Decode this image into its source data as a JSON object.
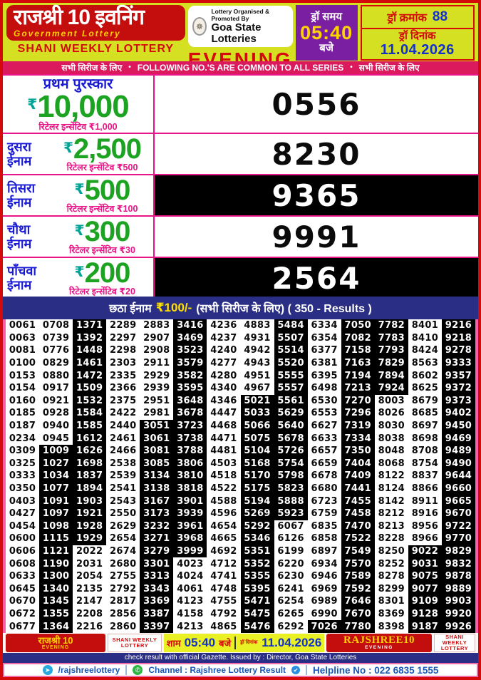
{
  "colors": {
    "background_green": "#d6e023",
    "brand_red": "#c40d0d",
    "strip_pink": "#db1a5e",
    "purple": "#7b1fa2",
    "navy": "#2b2e85",
    "amount_green": "#1ca322",
    "label_blue": "#1a1ad4",
    "value_blue": "#1231c8",
    "incentive_pink": "#e91487",
    "time_yellow": "#ffd400",
    "footer_yellow": "#e9f024",
    "contact_blue": "#1857b5"
  },
  "header": {
    "title_hi": "राजश्री 10 इवनिंग",
    "gov_lottery": "Government Lottery",
    "weekly": "SHANI WEEKLY LOTTERY",
    "org_line1": "Lottery Organised & Promoted By",
    "org_line2": "Goa State Lotteries",
    "session": "EVENING",
    "draw_time_label": "ड्रॉ समय",
    "draw_time": "05:40",
    "draw_time_unit": "बजे",
    "draw_no_label": "ड्रॉ क्रमांक",
    "draw_no": "88",
    "draw_date_label": "ड्रॉ दिनांक",
    "draw_date": "11.04.2026"
  },
  "series_strip": {
    "hindi": "सभी सिरीज के लिए",
    "bullet": "•",
    "english": "FOLLOWING NO.'S ARE COMMON TO ALL SERIES"
  },
  "prizes": [
    {
      "title": "प्रथम पुरस्कार",
      "rupee": "₹",
      "amount": "10,000",
      "incentive": "रिटेलर इन्सेंटिव ₹1,000",
      "number": "0556"
    },
    {
      "title": "दुसरा ईनाम",
      "rupee": "₹",
      "amount": "2,500",
      "incentive": "रिटेलर इन्सेंटिव ₹500",
      "number": "8230"
    },
    {
      "title": "तिसरा ईनाम",
      "rupee": "₹",
      "amount": "500",
      "incentive": "रिटेलर इन्सेंटिव ₹100",
      "number": "9365"
    },
    {
      "title": "चौथा ईनाम",
      "rupee": "₹",
      "amount": "300",
      "incentive": "रिटेलर इन्सेंटिव ₹30",
      "number": "9991"
    },
    {
      "title": "पाँचवा ईनाम",
      "rupee": "₹",
      "amount": "200",
      "incentive": "रिटेलर इन्सेंटिव ₹20",
      "number": "2564"
    }
  ],
  "sixth_prize": {
    "label": "छठा ईनाम",
    "amount": "₹100/-",
    "note": "(सभी सिरीज के लिए) ( 350 - Results )"
  },
  "results": {
    "rows": [
      [
        "0061",
        "0708",
        "1371",
        "2289",
        "2883",
        "3416",
        "4236",
        "4883",
        "5484",
        "6334",
        "7050",
        "7782",
        "8401",
        "9216"
      ],
      [
        "0063",
        "0739",
        "1392",
        "2297",
        "2907",
        "3469",
        "4237",
        "4931",
        "5507",
        "6354",
        "7082",
        "7783",
        "8410",
        "9218"
      ],
      [
        "0081",
        "0776",
        "1448",
        "2298",
        "2908",
        "3523",
        "4240",
        "4942",
        "5514",
        "6377",
        "7158",
        "7793",
        "8424",
        "9278"
      ],
      [
        "0100",
        "0829",
        "1461",
        "2303",
        "2911",
        "3579",
        "4277",
        "4943",
        "5520",
        "6381",
        "7163",
        "7829",
        "8563",
        "9333"
      ],
      [
        "0153",
        "0880",
        "1472",
        "2335",
        "2929",
        "3582",
        "4280",
        "4951",
        "5555",
        "6395",
        "7194",
        "7894",
        "8602",
        "9357"
      ],
      [
        "0154",
        "0917",
        "1509",
        "2366",
        "2939",
        "3595",
        "4340",
        "4967",
        "5557",
        "6498",
        "7213",
        "7924",
        "8625",
        "9372"
      ],
      [
        "0160",
        "0921",
        "1532",
        "2375",
        "2951",
        "3648",
        "4346",
        "5021",
        "5561",
        "6530",
        "7270",
        "8003",
        "8679",
        "9373"
      ],
      [
        "0185",
        "0928",
        "1584",
        "2422",
        "2981",
        "3678",
        "4447",
        "5033",
        "5629",
        "6553",
        "7296",
        "8026",
        "8685",
        "9402"
      ],
      [
        "0187",
        "0940",
        "1585",
        "2440",
        "3051",
        "3723",
        "4468",
        "5066",
        "5640",
        "6627",
        "7319",
        "8030",
        "8697",
        "9450"
      ],
      [
        "0234",
        "0945",
        "1612",
        "2461",
        "3061",
        "3738",
        "4471",
        "5075",
        "5678",
        "6633",
        "7334",
        "8038",
        "8698",
        "9469"
      ],
      [
        "0309",
        "1009",
        "1626",
        "2466",
        "3081",
        "3788",
        "4481",
        "5104",
        "5726",
        "6657",
        "7350",
        "8048",
        "8708",
        "9489"
      ],
      [
        "0325",
        "1027",
        "1698",
        "2538",
        "3085",
        "3806",
        "4503",
        "5168",
        "5754",
        "6659",
        "7404",
        "8068",
        "8754",
        "9490"
      ],
      [
        "0333",
        "1034",
        "1837",
        "2539",
        "3134",
        "3810",
        "4518",
        "5170",
        "5798",
        "6678",
        "7409",
        "8122",
        "8837",
        "9644"
      ],
      [
        "0350",
        "1077",
        "1894",
        "2541",
        "3138",
        "3818",
        "4522",
        "5175",
        "5823",
        "6680",
        "7441",
        "8124",
        "8866",
        "9660"
      ],
      [
        "0403",
        "1091",
        "1903",
        "2543",
        "3167",
        "3901",
        "4588",
        "5194",
        "5888",
        "6723",
        "7455",
        "8142",
        "8911",
        "9665"
      ],
      [
        "0427",
        "1097",
        "1921",
        "2550",
        "3173",
        "3939",
        "4596",
        "5269",
        "5923",
        "6759",
        "7458",
        "8212",
        "8916",
        "9670"
      ],
      [
        "0454",
        "1098",
        "1928",
        "2629",
        "3232",
        "3961",
        "4654",
        "5292",
        "6067",
        "6835",
        "7470",
        "8213",
        "8956",
        "9722"
      ],
      [
        "0600",
        "1115",
        "1929",
        "2654",
        "3271",
        "3968",
        "4665",
        "5346",
        "6126",
        "6858",
        "7522",
        "8228",
        "8966",
        "9770"
      ],
      [
        "0606",
        "1121",
        "2022",
        "2674",
        "3279",
        "3999",
        "4692",
        "5351",
        "6199",
        "6897",
        "7549",
        "8250",
        "9022",
        "9829"
      ],
      [
        "0608",
        "1190",
        "2031",
        "2680",
        "3301",
        "4023",
        "4712",
        "5352",
        "6220",
        "6934",
        "7570",
        "8252",
        "9031",
        "9832"
      ],
      [
        "0633",
        "1300",
        "2054",
        "2755",
        "3313",
        "4024",
        "4741",
        "5355",
        "6230",
        "6946",
        "7589",
        "8278",
        "9075",
        "9878"
      ],
      [
        "0645",
        "1340",
        "2135",
        "2792",
        "3343",
        "4061",
        "4748",
        "5395",
        "6241",
        "6969",
        "7592",
        "8299",
        "9077",
        "9889"
      ],
      [
        "0670",
        "1345",
        "2147",
        "2817",
        "3369",
        "4123",
        "4755",
        "5471",
        "6254",
        "6989",
        "7646",
        "8301",
        "9109",
        "9903"
      ],
      [
        "0672",
        "1355",
        "2208",
        "2856",
        "3387",
        "4158",
        "4792",
        "5475",
        "6265",
        "6990",
        "7670",
        "8369",
        "9128",
        "9920"
      ],
      [
        "0677",
        "1364",
        "2216",
        "2860",
        "3397",
        "4213",
        "4865",
        "5476",
        "6292",
        "7026",
        "7780",
        "8398",
        "9187",
        "9926"
      ]
    ],
    "black_regions": [
      {
        "col": 2,
        "from": 11,
        "to": 25
      },
      {
        "col": 3,
        "from": 1,
        "to": 18
      },
      {
        "col": 5,
        "from": 9,
        "to": 25
      },
      {
        "col": 6,
        "from": 1,
        "to": 19
      },
      {
        "col": 8,
        "from": 7,
        "to": 25
      },
      {
        "col": 9,
        "from": 1,
        "to": 16
      },
      {
        "col": 10,
        "from": 25,
        "to": 25
      },
      {
        "col": 11,
        "from": 1,
        "to": 25
      },
      {
        "col": 12,
        "from": 1,
        "to": 6
      },
      {
        "col": 13,
        "from": 19,
        "to": 25
      },
      {
        "col": 14,
        "from": 1,
        "to": 25
      }
    ]
  },
  "footer": {
    "brand_hi": "राजश्री 10",
    "brand_hi_sub": "EVENING",
    "weekly": "SHANI WEEKLY LOTTERY",
    "time_label": "शाम",
    "time": "05:40",
    "time_unit": "बजे",
    "date_label": "ड्रॉ दिनांक",
    "date": "11.04.2026",
    "brand_en": "RAJSHREE10",
    "brand_en_sub": "EVENING",
    "gazette": "check result with official Gazette. Issued by : Director, Goa State Lotteries",
    "telegram_handle": "/rajshreelottery",
    "channel": "Channel : Rajshree Lottery Result",
    "helpline": "Helpline No : 022 6835 1555"
  }
}
